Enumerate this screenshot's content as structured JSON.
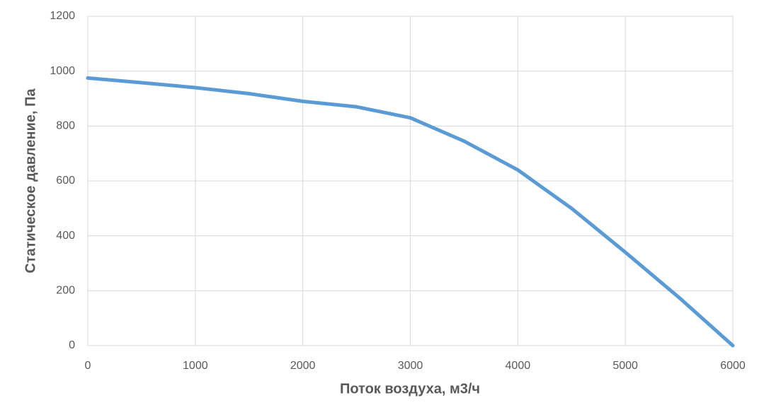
{
  "chart_data": {
    "type": "line",
    "x_label": "Поток воздуха, м3/ч",
    "y_label": "Статическое давление, Па",
    "x": [
      0,
      500,
      1000,
      1500,
      2000,
      2500,
      3000,
      3500,
      4000,
      4500,
      5000,
      5500,
      6000
    ],
    "series": [
      {
        "color": "#5b9bd5",
        "values": [
          975,
          958,
          940,
          918,
          890,
          870,
          830,
          745,
          640,
          500,
          340,
          175,
          0
        ]
      }
    ],
    "xlim": [
      0,
      6000
    ],
    "xticks": [
      0,
      1000,
      2000,
      3000,
      4000,
      5000,
      6000
    ],
    "ylim": [
      0,
      1200
    ],
    "yticks": [
      0,
      200,
      400,
      600,
      800,
      1000,
      1200
    ],
    "grid": true
  }
}
